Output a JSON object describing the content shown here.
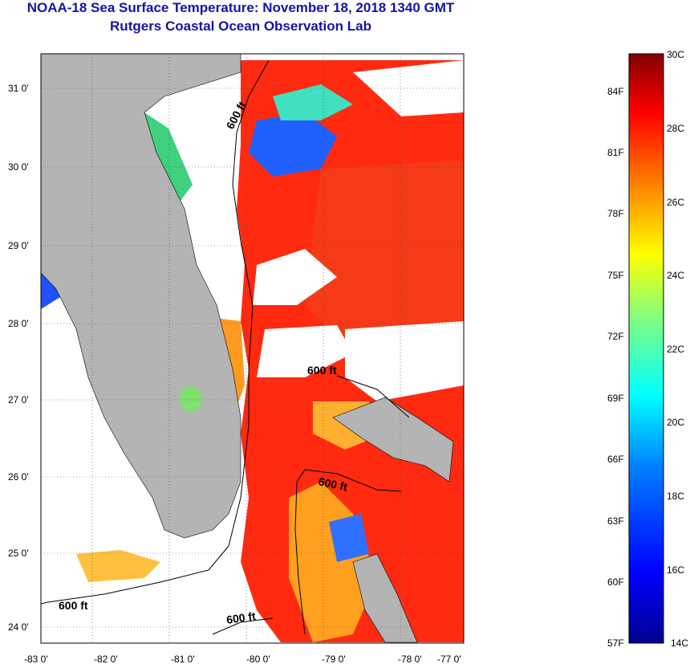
{
  "title": {
    "line1": "NOAA-18 Sea Surface Temperature:  November 18, 2018 1340 GMT",
    "line2": "Rutgers Coastal Ocean Observation Lab"
  },
  "map": {
    "lat_ticks": [
      "31 0'",
      "30 0'",
      "29 0'",
      "28 0'",
      "27 0'",
      "26 0'",
      "25 0'",
      "24 0'"
    ],
    "lon_ticks": [
      "-83 0'",
      "-82 0'",
      "-81 0'",
      "-80 0'",
      "-79 0'",
      "-78 0'",
      "-77 0'"
    ],
    "contour_label": "600 ft",
    "land_color": "#b4b4b4",
    "ocean_dominant_color": "#ff2a10"
  },
  "colorbar": {
    "celsius_labels": [
      "30C",
      "28C",
      "26C",
      "24C",
      "22C",
      "20C",
      "18C",
      "16C",
      "14C"
    ],
    "fahrenheit_labels": [
      "84F",
      "81F",
      "78F",
      "75F",
      "72F",
      "69F",
      "66F",
      "63F",
      "60F",
      "57F"
    ],
    "color_stops": [
      "#00008f",
      "#0000ff",
      "#0080ff",
      "#00ffff",
      "#80ff80",
      "#ffff00",
      "#ff8000",
      "#ff0000",
      "#800000"
    ]
  }
}
